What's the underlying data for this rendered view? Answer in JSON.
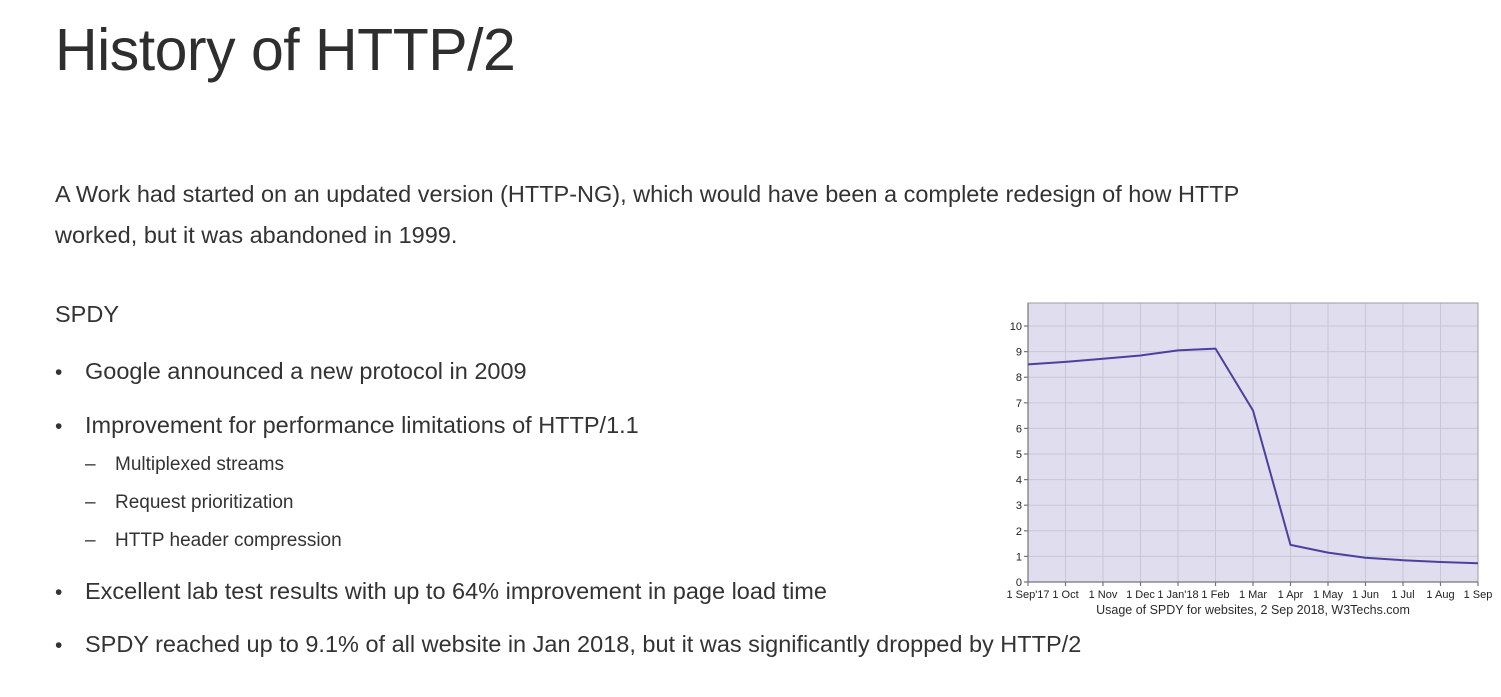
{
  "slide": {
    "title": "History of HTTP/2",
    "intro_lines": [
      "A Work had started on an updated version (HTTP-NG), which would have been a complete redesign of how HTTP",
      "worked, but it was abandoned in 1999."
    ],
    "section_heading": "SPDY",
    "bullet_marker": "•",
    "sub_bullet_marker": "–",
    "bullets": [
      {
        "text": "Google announced a new protocol in 2009",
        "sub": []
      },
      {
        "text": "Improvement for performance limitations of HTTP/1.1",
        "sub": [
          "Multiplexed streams",
          "Request prioritization",
          "HTTP header compression"
        ]
      },
      {
        "text": "Excellent lab test results with up to 64% improvement in page load time",
        "sub": []
      },
      {
        "text": "SPDY reached up to 9.1% of all website in Jan 2018, but it was significantly dropped by HTTP/2",
        "sub": []
      }
    ]
  },
  "chart_data": {
    "type": "line",
    "title": "",
    "xlabel": "",
    "ylabel": "",
    "caption": "Usage of SPDY for websites, 2 Sep 2018, W3Techs.com",
    "x": [
      "1 Sep'17",
      "1 Oct",
      "1 Nov",
      "1 Dec",
      "1 Jan'18",
      "1 Feb",
      "1 Mar",
      "1 Apr",
      "1 May",
      "1 Jun",
      "1 Jul",
      "1 Aug",
      "1 Sep"
    ],
    "values": [
      8.5,
      8.6,
      8.72,
      8.85,
      9.05,
      9.12,
      6.7,
      1.45,
      1.15,
      0.95,
      0.85,
      0.78,
      0.73
    ],
    "yticks": [
      0,
      1,
      2,
      3,
      4,
      5,
      6,
      7,
      8,
      9,
      10
    ],
    "ylim": [
      0,
      10.9
    ],
    "grid": true,
    "legend": false,
    "colors": {
      "line": "#4b40a0",
      "plot_bg": "#dfddee",
      "grid": "#c8c8d4",
      "border": "#9b9ba4",
      "axis": "#74747d"
    }
  }
}
